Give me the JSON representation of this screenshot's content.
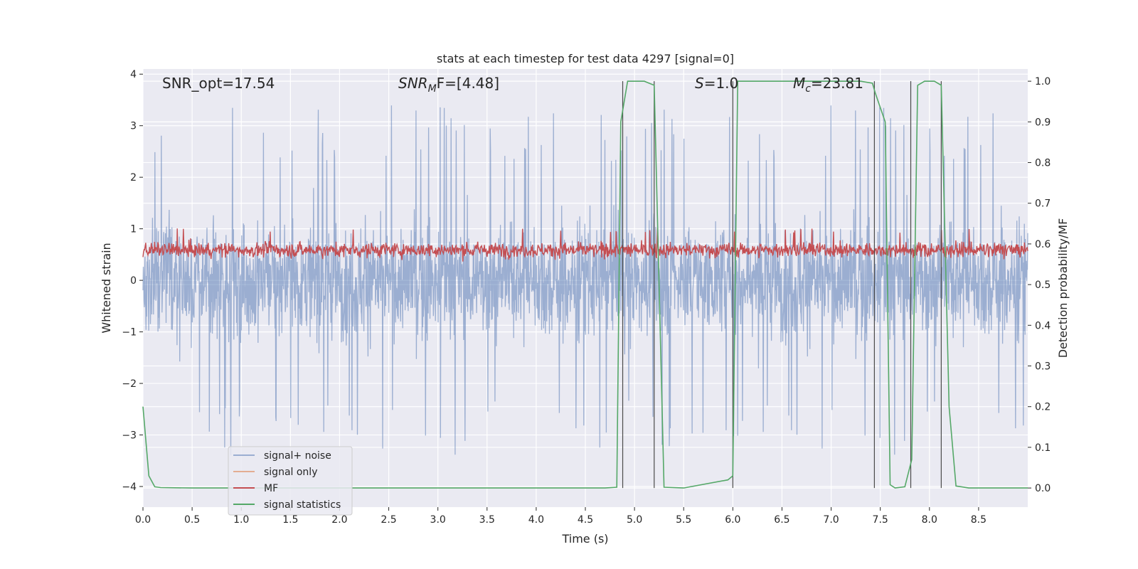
{
  "chart_data": {
    "type": "line",
    "title": "stats at each timestep for test data 4297 [signal=0]",
    "xlabel": "Time (s)",
    "ylabel": "Whitened strain",
    "y2label": "Detection probability/MF",
    "xlim": [
      0.0,
      9.0
    ],
    "ylim": [
      -4.4,
      4.1
    ],
    "y2lim": [
      -0.047,
      1.03
    ],
    "xticks": [
      "0.0",
      "0.5",
      "1.0",
      "1.5",
      "2.0",
      "2.5",
      "3.0",
      "3.5",
      "4.0",
      "4.5",
      "5.0",
      "5.5",
      "6.0",
      "6.5",
      "7.0",
      "7.5",
      "8.0",
      "8.5"
    ],
    "yticks": [
      "4",
      "3",
      "2",
      "1",
      "0",
      "−1",
      "−2",
      "−3",
      "−4"
    ],
    "y2ticks": [
      "1.0",
      "0.9",
      "0.8",
      "0.7",
      "0.6",
      "0.5",
      "0.4",
      "0.3",
      "0.2",
      "0.1",
      "0.0"
    ],
    "grid": true,
    "background": "#eaeaf2",
    "legend_position": "lower-left",
    "annotations": {
      "snr_opt": "SNR_opt=17.54",
      "snr_mf_label": "SNR",
      "snr_mf_sub": "M",
      "snr_mf_rest": "F=[4.48]",
      "s_label": "S",
      "s_rest": "=1.0",
      "mc_label": "M",
      "mc_sub": "c",
      "mc_rest": "=23.81"
    },
    "series": [
      {
        "name": "signal+ noise",
        "color": "#4c72b0",
        "axis": "left",
        "description_amplitude": "noise spanning about -2 to +2 with spikes to about ±3.5",
        "range": [
          -4.0,
          3.5
        ]
      },
      {
        "name": "signal only",
        "color": "#dd8452",
        "axis": "left",
        "values": []
      },
      {
        "name": "MF",
        "color": "#c44e52",
        "axis": "right",
        "range": [
          0.54,
          0.64
        ]
      },
      {
        "name": "signal statistics",
        "color": "#55a868",
        "axis": "right",
        "x": [
          0.0,
          0.06,
          0.12,
          0.18,
          0.5,
          1.0,
          2.0,
          3.0,
          4.0,
          4.7,
          4.82,
          4.86,
          4.93,
          5.1,
          5.2,
          5.3,
          5.5,
          5.95,
          6.0,
          6.05,
          6.3,
          6.8,
          7.3,
          7.42,
          7.45,
          7.55,
          7.6,
          7.65,
          7.75,
          7.82,
          7.88,
          7.95,
          8.05,
          8.12,
          8.2,
          8.27,
          8.4,
          9.0
        ],
        "values": [
          0.2,
          0.03,
          0.003,
          0.001,
          0.0,
          0.0,
          0.0,
          0.0,
          0.0,
          0.0,
          0.002,
          0.9,
          1.0,
          1.0,
          0.99,
          0.002,
          0.0,
          0.02,
          0.03,
          1.0,
          1.0,
          1.0,
          1.0,
          0.995,
          0.97,
          0.9,
          0.008,
          0.0,
          0.003,
          0.07,
          0.99,
          1.0,
          1.0,
          0.99,
          0.2,
          0.005,
          0.0,
          0.0
        ]
      }
    ],
    "vlines": [
      4.88,
      5.2,
      6.0,
      7.44,
      7.81,
      8.12
    ]
  }
}
